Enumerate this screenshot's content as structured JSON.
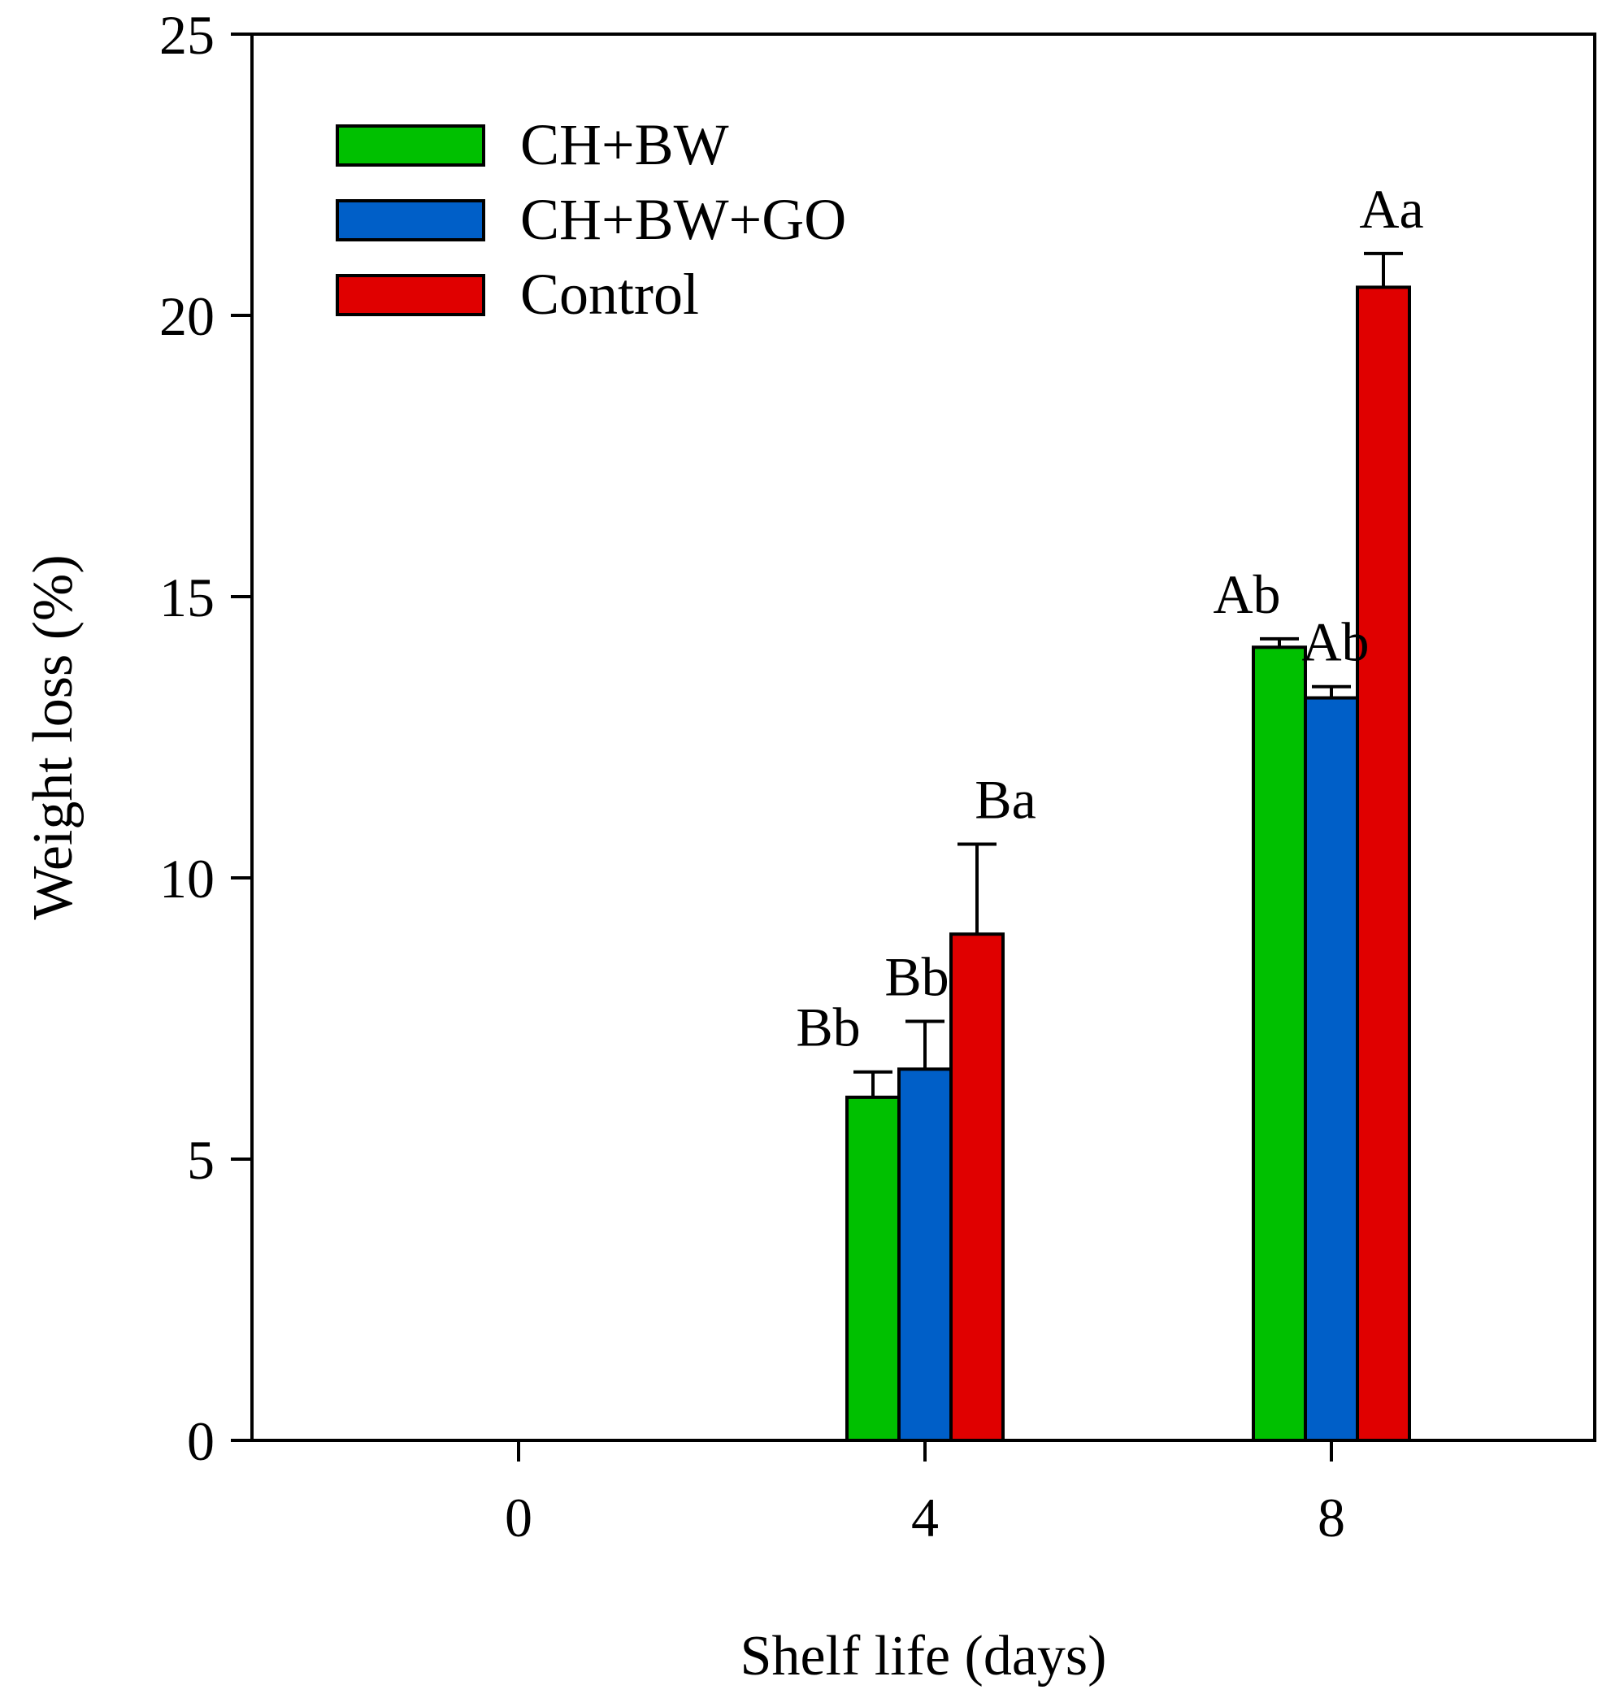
{
  "chart_data": {
    "type": "bar",
    "title": "",
    "xlabel": "Shelf life (days)",
    "ylabel": "Weight loss (%)",
    "ylim": [
      0,
      25
    ],
    "yticks": [
      "0",
      "5",
      "10",
      "15",
      "20",
      "25"
    ],
    "categories": [
      "0",
      "4",
      "8"
    ],
    "legend_position": "top-left",
    "series": [
      {
        "name": "CH+BW",
        "color": "#00c000",
        "values": [
          null,
          6.1,
          14.1
        ],
        "errors": [
          null,
          0.45,
          0.15
        ],
        "labels": [
          null,
          "Bb",
          "Ab"
        ]
      },
      {
        "name": "CH+BW+GO",
        "color": "#005fc8",
        "values": [
          null,
          6.6,
          13.2
        ],
        "errors": [
          null,
          0.85,
          0.2
        ],
        "labels": [
          null,
          "Bb",
          "Ab"
        ]
      },
      {
        "name": "Control",
        "color": "#e00000",
        "values": [
          null,
          9.0,
          20.5
        ],
        "errors": [
          null,
          1.6,
          0.6
        ],
        "labels": [
          null,
          "Ba",
          "Aa"
        ]
      }
    ]
  }
}
